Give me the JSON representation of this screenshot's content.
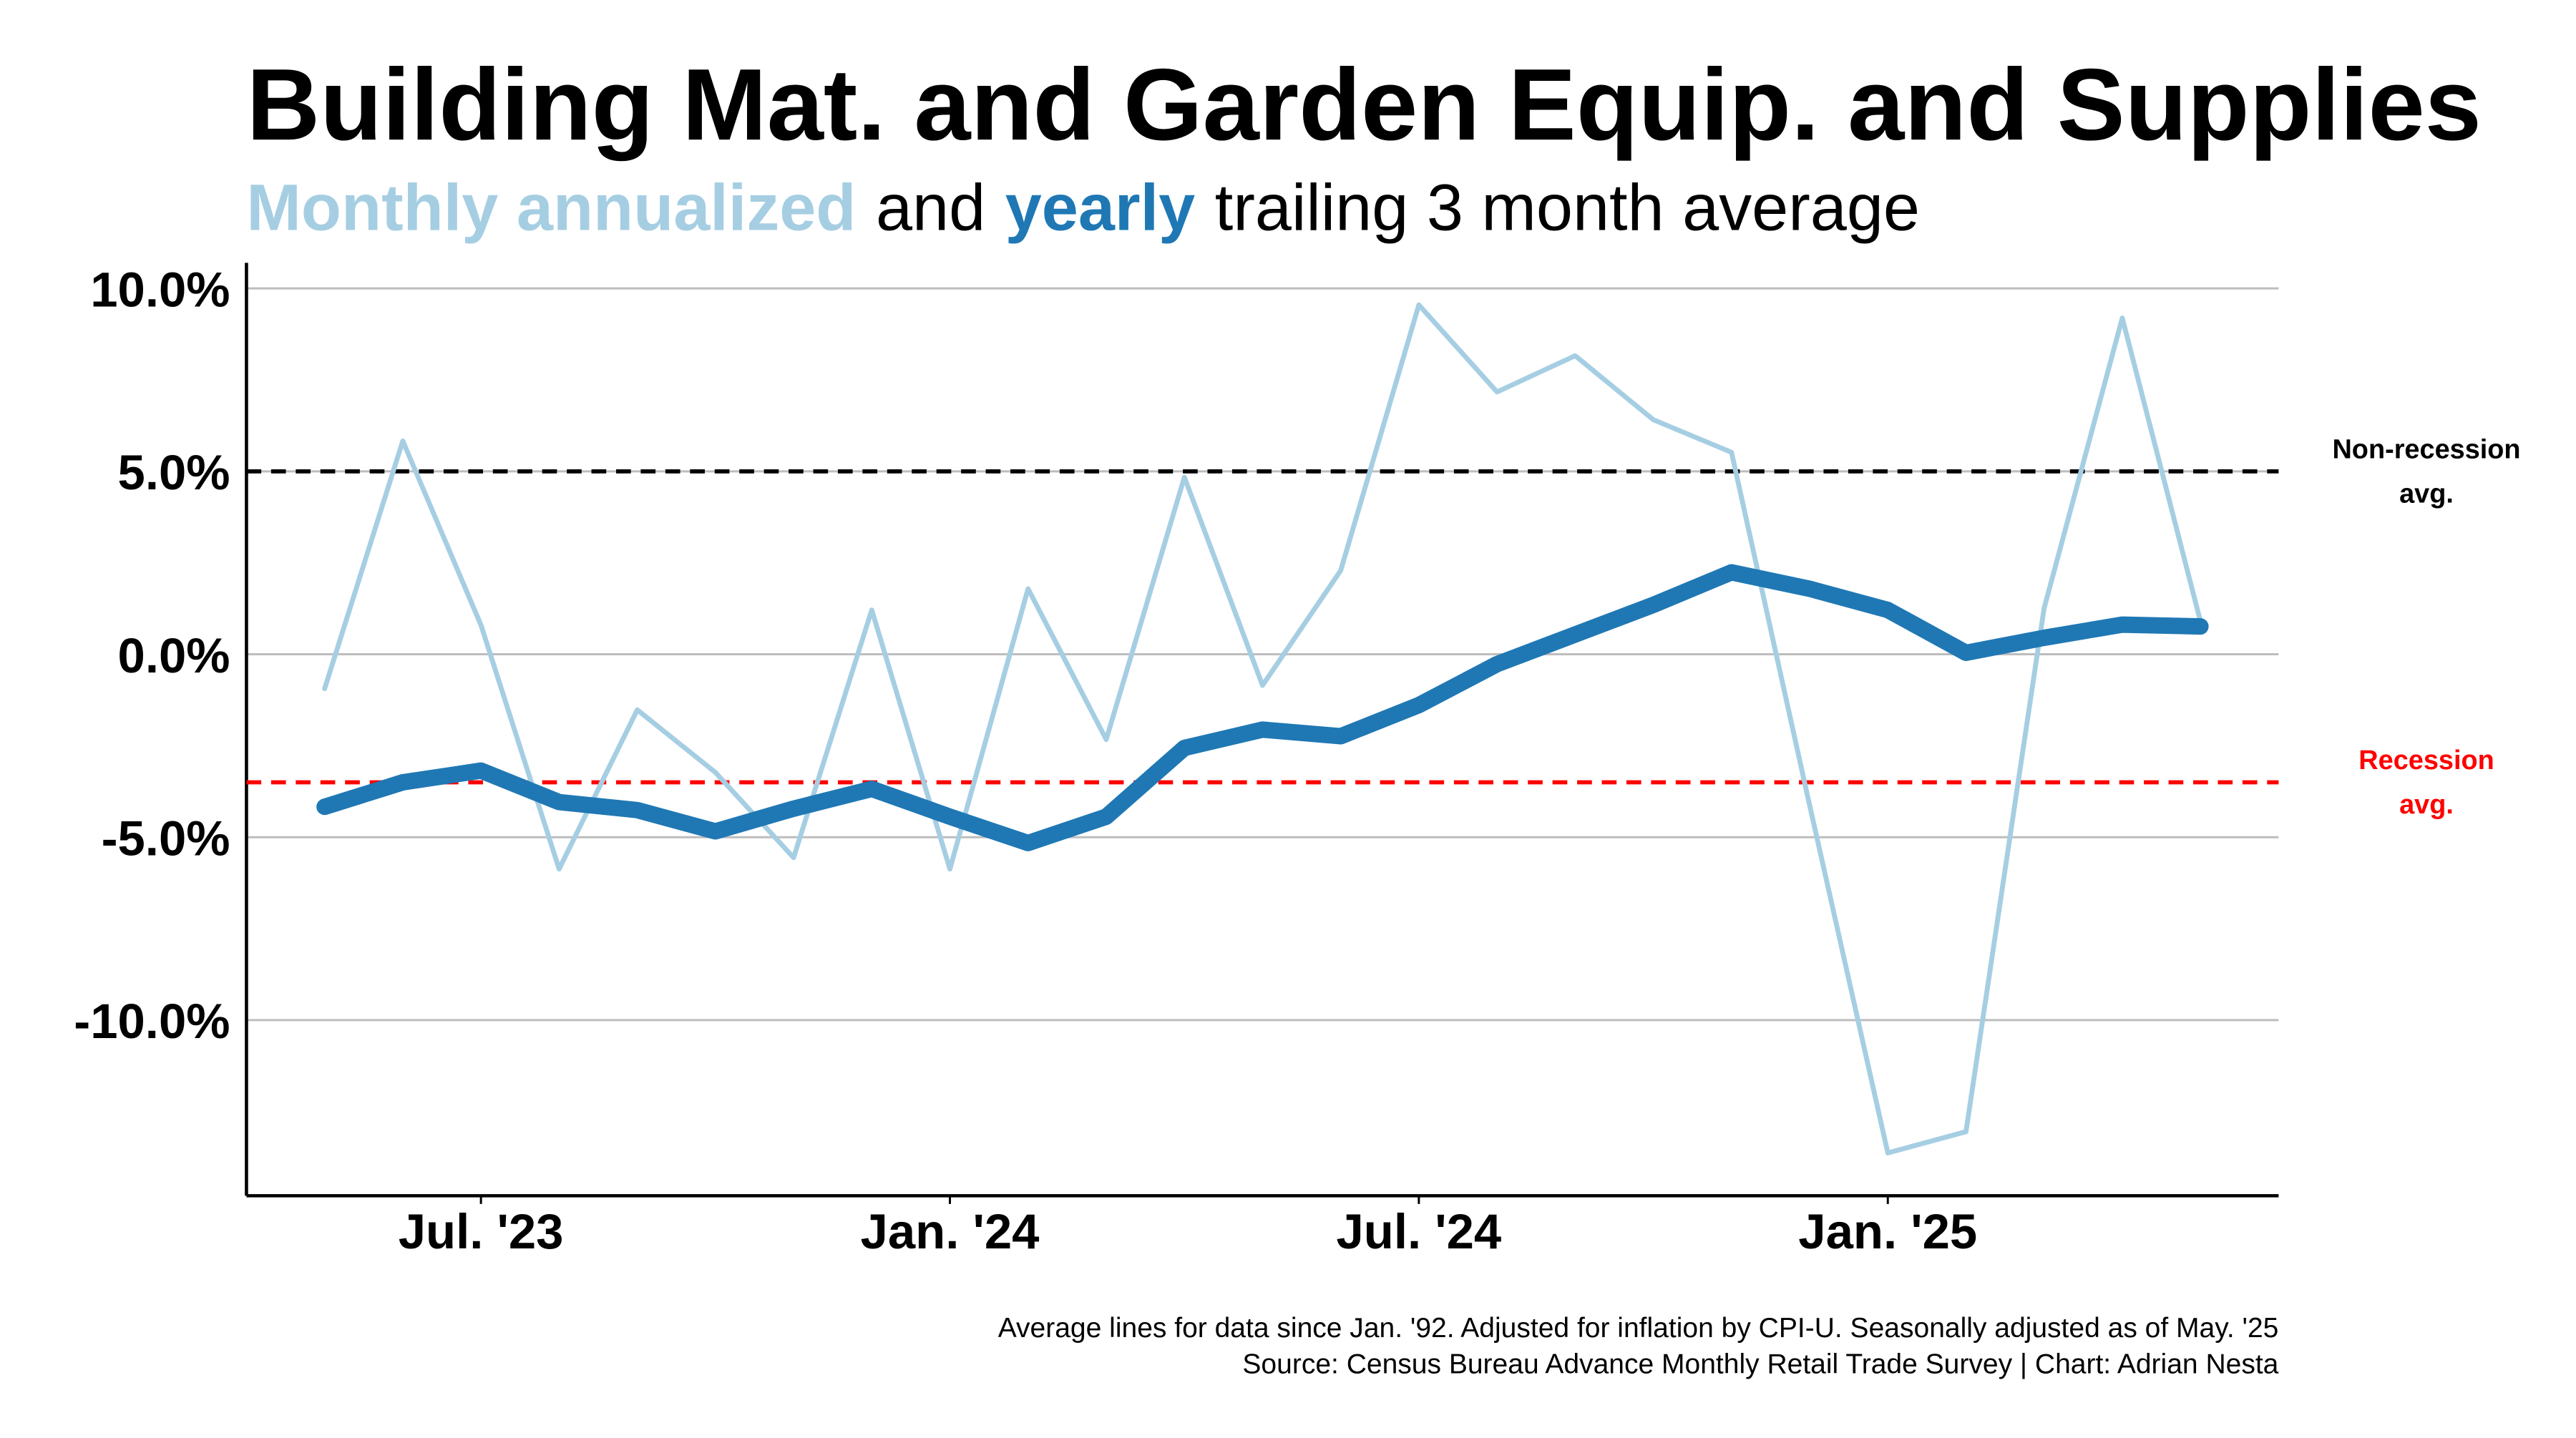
{
  "chart_data": {
    "type": "line",
    "title": "Building Mat. and Garden Equip. and Supplies",
    "subtitle": [
      {
        "text": "Monthly annualized",
        "color": "#a6cee3",
        "bold": true
      },
      {
        "text": "and",
        "color": "#000000",
        "bold": false
      },
      {
        "text": "yearly",
        "color": "#1f78b4",
        "bold": true
      },
      {
        "text": "trailing 3 month average",
        "color": "#000000",
        "bold": false
      }
    ],
    "x": [
      "2023-05",
      "2023-06",
      "2023-07",
      "2023-08",
      "2023-09",
      "2023-10",
      "2023-11",
      "2023-12",
      "2024-01",
      "2024-02",
      "2024-03",
      "2024-04",
      "2024-05",
      "2024-06",
      "2024-07",
      "2024-08",
      "2024-09",
      "2024-10",
      "2024-11",
      "2024-12",
      "2025-01",
      "2025-02",
      "2025-03",
      "2025-04",
      "2025-05"
    ],
    "xlim": [
      "2023-04",
      "2025-06"
    ],
    "xticks": [
      {
        "value": "2023-07",
        "label": "Jul. '23"
      },
      {
        "value": "2024-01",
        "label": "Jan. '24"
      },
      {
        "value": "2024-07",
        "label": "Jul. '24"
      },
      {
        "value": "2025-01",
        "label": "Jan. '25"
      }
    ],
    "ylim": [
      -14.8,
      10.7
    ],
    "yticks": [
      {
        "value": -10,
        "label": "-10.0%"
      },
      {
        "value": -5,
        "label": "-5.0%"
      },
      {
        "value": 0,
        "label": "0.0%"
      },
      {
        "value": 5,
        "label": "5.0%"
      },
      {
        "value": 10,
        "label": "10.0%"
      }
    ],
    "grid": true,
    "series": [
      {
        "name": "Monthly annualized",
        "color": "#a6cee3",
        "width": 3,
        "values": [
          -0.94,
          5.83,
          0.8,
          -5.87,
          -1.52,
          -3.23,
          -5.56,
          1.21,
          -5.87,
          1.79,
          -2.33,
          4.84,
          -0.85,
          2.29,
          9.55,
          7.17,
          8.16,
          6.41,
          5.52,
          -4.13,
          -13.63,
          -13.05,
          1.26,
          9.19,
          0.9
        ]
      },
      {
        "name": "yearly",
        "color": "#1f78b4",
        "width": 10,
        "values": [
          -4.17,
          -3.5,
          -3.18,
          -4.04,
          -4.26,
          -4.84,
          -4.22,
          -3.68,
          -4.44,
          -5.16,
          -4.44,
          -2.56,
          -2.06,
          -2.24,
          -1.39,
          -0.27,
          0.54,
          1.35,
          2.24,
          1.79,
          1.21,
          0.04,
          0.45,
          0.81,
          0.76
        ]
      }
    ],
    "reference_lines": [
      {
        "value": 5.0,
        "color": "#000000",
        "label": [
          "Non-recession",
          "avg."
        ]
      },
      {
        "value": -3.5,
        "color": "#ff0000",
        "label": [
          "Recession",
          "avg."
        ]
      }
    ],
    "footnote": [
      "Average lines for data since Jan. '92. Adjusted for inflation by CPI-U. Seasonally adjusted as of May. '25",
      "Source: Census Bureau Advance Monthly Retail Trade Survey | Chart: Adrian Nesta"
    ]
  }
}
